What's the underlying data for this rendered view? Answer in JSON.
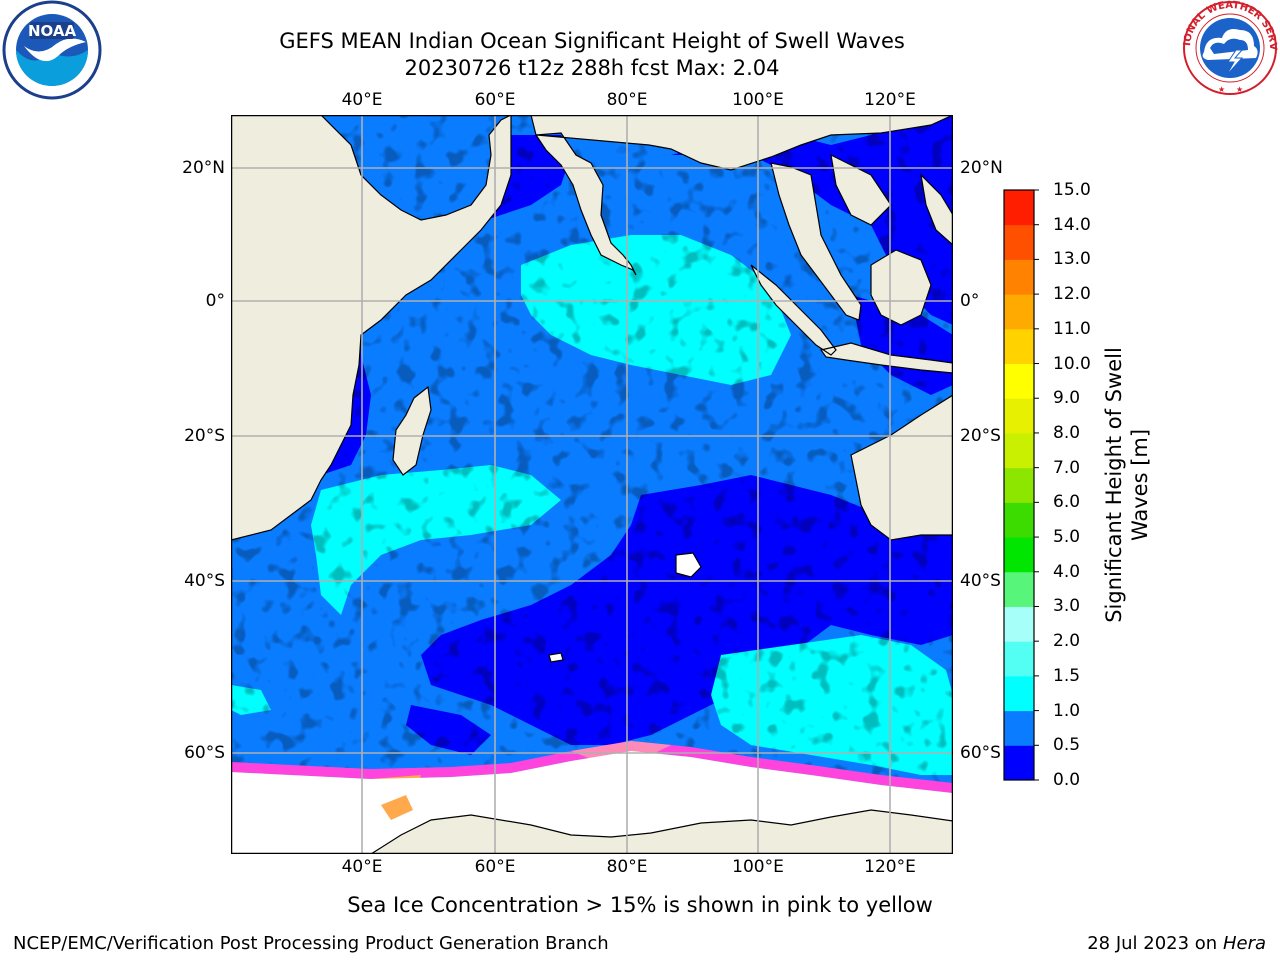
{
  "header": {
    "title_line1": "GEFS MEAN Indian Ocean Significant Height of Swell Waves",
    "title_line2": "20230726 t12z 288h fcst   Max: 2.04"
  },
  "logos": {
    "left": {
      "text": "NOAA",
      "ring_text": "NATIONAL OCEANIC AND ATMOSPHERIC ADMINISTRATION · U.S. DEPARTMENT OF COMMERCE"
    },
    "right": {
      "ring_text": "NATIONAL WEATHER SERVICE"
    }
  },
  "map": {
    "lon_ticks_top": [
      "40°E",
      "60°E",
      "80°E",
      "100°E",
      "120°E"
    ],
    "lon_ticks_bottom": [
      "40°E",
      "60°E",
      "80°E",
      "100°E",
      "120°E"
    ],
    "lat_ticks_left": [
      "20°N",
      "0°",
      "20°S",
      "40°S",
      "60°S"
    ],
    "lat_ticks_right": [
      "20°N",
      "0°",
      "20°S",
      "40°S",
      "60°S"
    ],
    "colors": {
      "land": "#efedde",
      "ice": "#ffffff",
      "grid": "#b0b0b0",
      "coast": "#000000"
    }
  },
  "colorbar": {
    "label": "Significant Height of Swell Waves [m]",
    "label_line1": "Significant Height of Swell",
    "label_line2": "Waves [m]",
    "ticks": [
      "0.0",
      "0.5",
      "1.0",
      "1.5",
      "2.0",
      "3.0",
      "4.0",
      "5.0",
      "6.0",
      "7.0",
      "8.0",
      "9.0",
      "10.0",
      "11.0",
      "12.0",
      "13.0",
      "14.0",
      "15.0"
    ],
    "colors": [
      "#0000ff",
      "#0a7cff",
      "#00ffff",
      "#52fff2",
      "#a6fff8",
      "#57f57a",
      "#00e600",
      "#3cdc00",
      "#8ce600",
      "#c8f000",
      "#e6f000",
      "#ffff00",
      "#ffd200",
      "#ffaa00",
      "#ff8200",
      "#ff5000",
      "#ff1e00"
    ]
  },
  "caption": "Sea Ice Concentration > 15% is shown in pink to yellow",
  "footer": {
    "left": "NCEP/EMC/Verification Post Processing Product Generation Branch",
    "right_prefix": "28 Jul 2023 on ",
    "right_machine": "Hera"
  }
}
